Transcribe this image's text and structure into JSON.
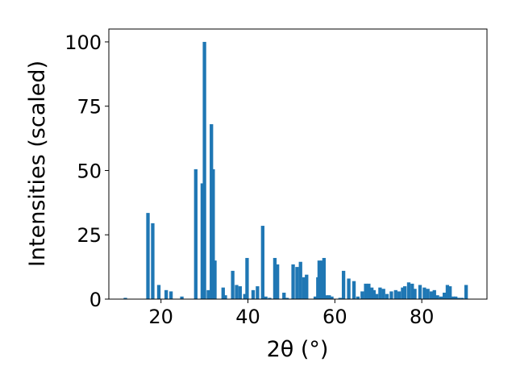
{
  "chart_data": {
    "type": "bar",
    "xlabel": "2θ (°)",
    "ylabel": "Intensities (scaled)",
    "xlim": [
      8,
      95
    ],
    "ylim": [
      0,
      105
    ],
    "x_ticks": [
      20,
      40,
      60,
      80
    ],
    "y_ticks": [
      0,
      25,
      50,
      75,
      100
    ],
    "bar_color": "#1f77b4",
    "grid": false,
    "x": [
      11.8,
      17.0,
      18.1,
      19.5,
      21.2,
      22.3,
      24.8,
      28.0,
      29.5,
      30.0,
      30.9,
      31.6,
      32.0,
      32.4,
      34.3,
      34.8,
      36.5,
      37.4,
      38.2,
      39.3,
      39.8,
      41.2,
      42.2,
      43.4,
      44.1,
      45.0,
      46.2,
      46.8,
      48.3,
      49.0,
      50.4,
      51.3,
      52.1,
      52.9,
      53.5,
      55.5,
      56.1,
      56.4,
      57.0,
      57.5,
      58.1,
      58.7,
      59.3,
      61.2,
      62.0,
      63.2,
      64.4,
      65.3,
      66.3,
      67.1,
      67.8,
      68.5,
      69.0,
      69.6,
      70.4,
      71.2,
      72.0,
      73.0,
      74.0,
      74.8,
      75.6,
      76.1,
      77.0,
      77.8,
      78.4,
      79.6,
      80.6,
      81.4,
      82.2,
      82.9,
      83.6,
      84.4,
      85.2,
      85.9,
      86.5,
      87.2,
      87.8,
      88.5,
      89.3,
      90.2
    ],
    "values": [
      0.5,
      33.5,
      29.5,
      5.5,
      3.5,
      3.0,
      1.0,
      50.5,
      45.0,
      100.0,
      3.5,
      68.0,
      50.5,
      15.0,
      4.5,
      1.5,
      11.0,
      5.5,
      5.0,
      2.0,
      16.0,
      3.5,
      5.0,
      28.5,
      1.0,
      0.5,
      16.0,
      13.5,
      2.5,
      0.5,
      13.5,
      12.5,
      14.5,
      8.5,
      9.5,
      1.0,
      8.5,
      15.0,
      15.0,
      16.0,
      1.5,
      1.5,
      1.0,
      0.5,
      11.0,
      8.0,
      7.0,
      1.0,
      3.0,
      6.0,
      6.0,
      4.5,
      3.5,
      2.0,
      4.5,
      4.0,
      2.0,
      3.0,
      3.5,
      3.0,
      4.5,
      5.0,
      6.5,
      6.0,
      4.0,
      5.5,
      4.5,
      4.0,
      3.0,
      3.5,
      1.5,
      1.0,
      2.5,
      5.5,
      5.0,
      1.0,
      1.0,
      0.5,
      0.5,
      5.5
    ]
  }
}
